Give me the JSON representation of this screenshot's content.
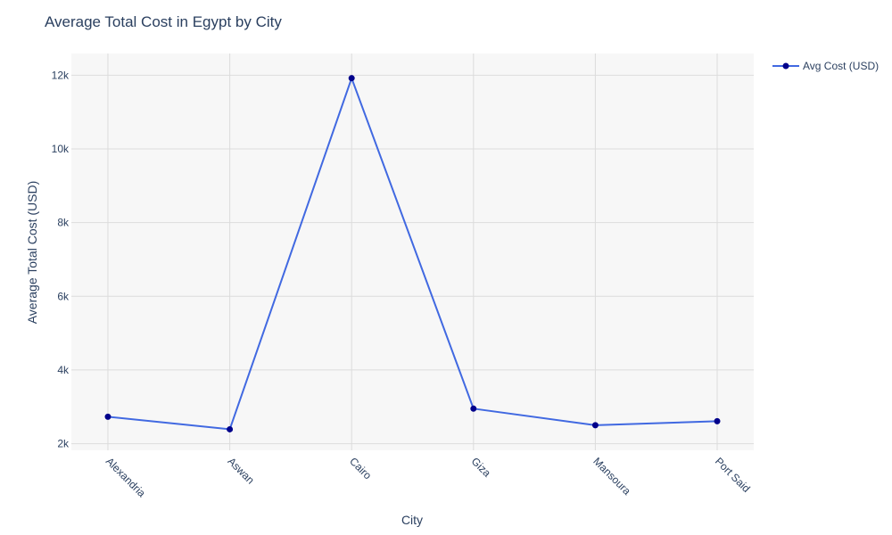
{
  "chart_data": {
    "type": "line",
    "title": "Average Total Cost in Egypt by City",
    "xlabel": "City",
    "ylabel": "Average Total Cost (USD)",
    "categories": [
      "Alexandria",
      "Aswan",
      "Cairo",
      "Giza",
      "Mansoura",
      "Port Said"
    ],
    "series": [
      {
        "name": "Avg Cost (USD)",
        "values": [
          2730,
          2390,
          11920,
          2950,
          2500,
          2610
        ],
        "line_color": "#4169e1",
        "marker_color": "#00008b"
      }
    ],
    "ylim": [
      1820,
      12590
    ],
    "y_ticks": [
      2000,
      4000,
      6000,
      8000,
      10000,
      12000
    ],
    "y_tick_labels": [
      "2k",
      "4k",
      "6k",
      "8k",
      "10k",
      "12k"
    ],
    "grid": true,
    "legend_position": "top-right",
    "plot_background": "#f7f7f7",
    "grid_color": "#dcdcdc"
  }
}
